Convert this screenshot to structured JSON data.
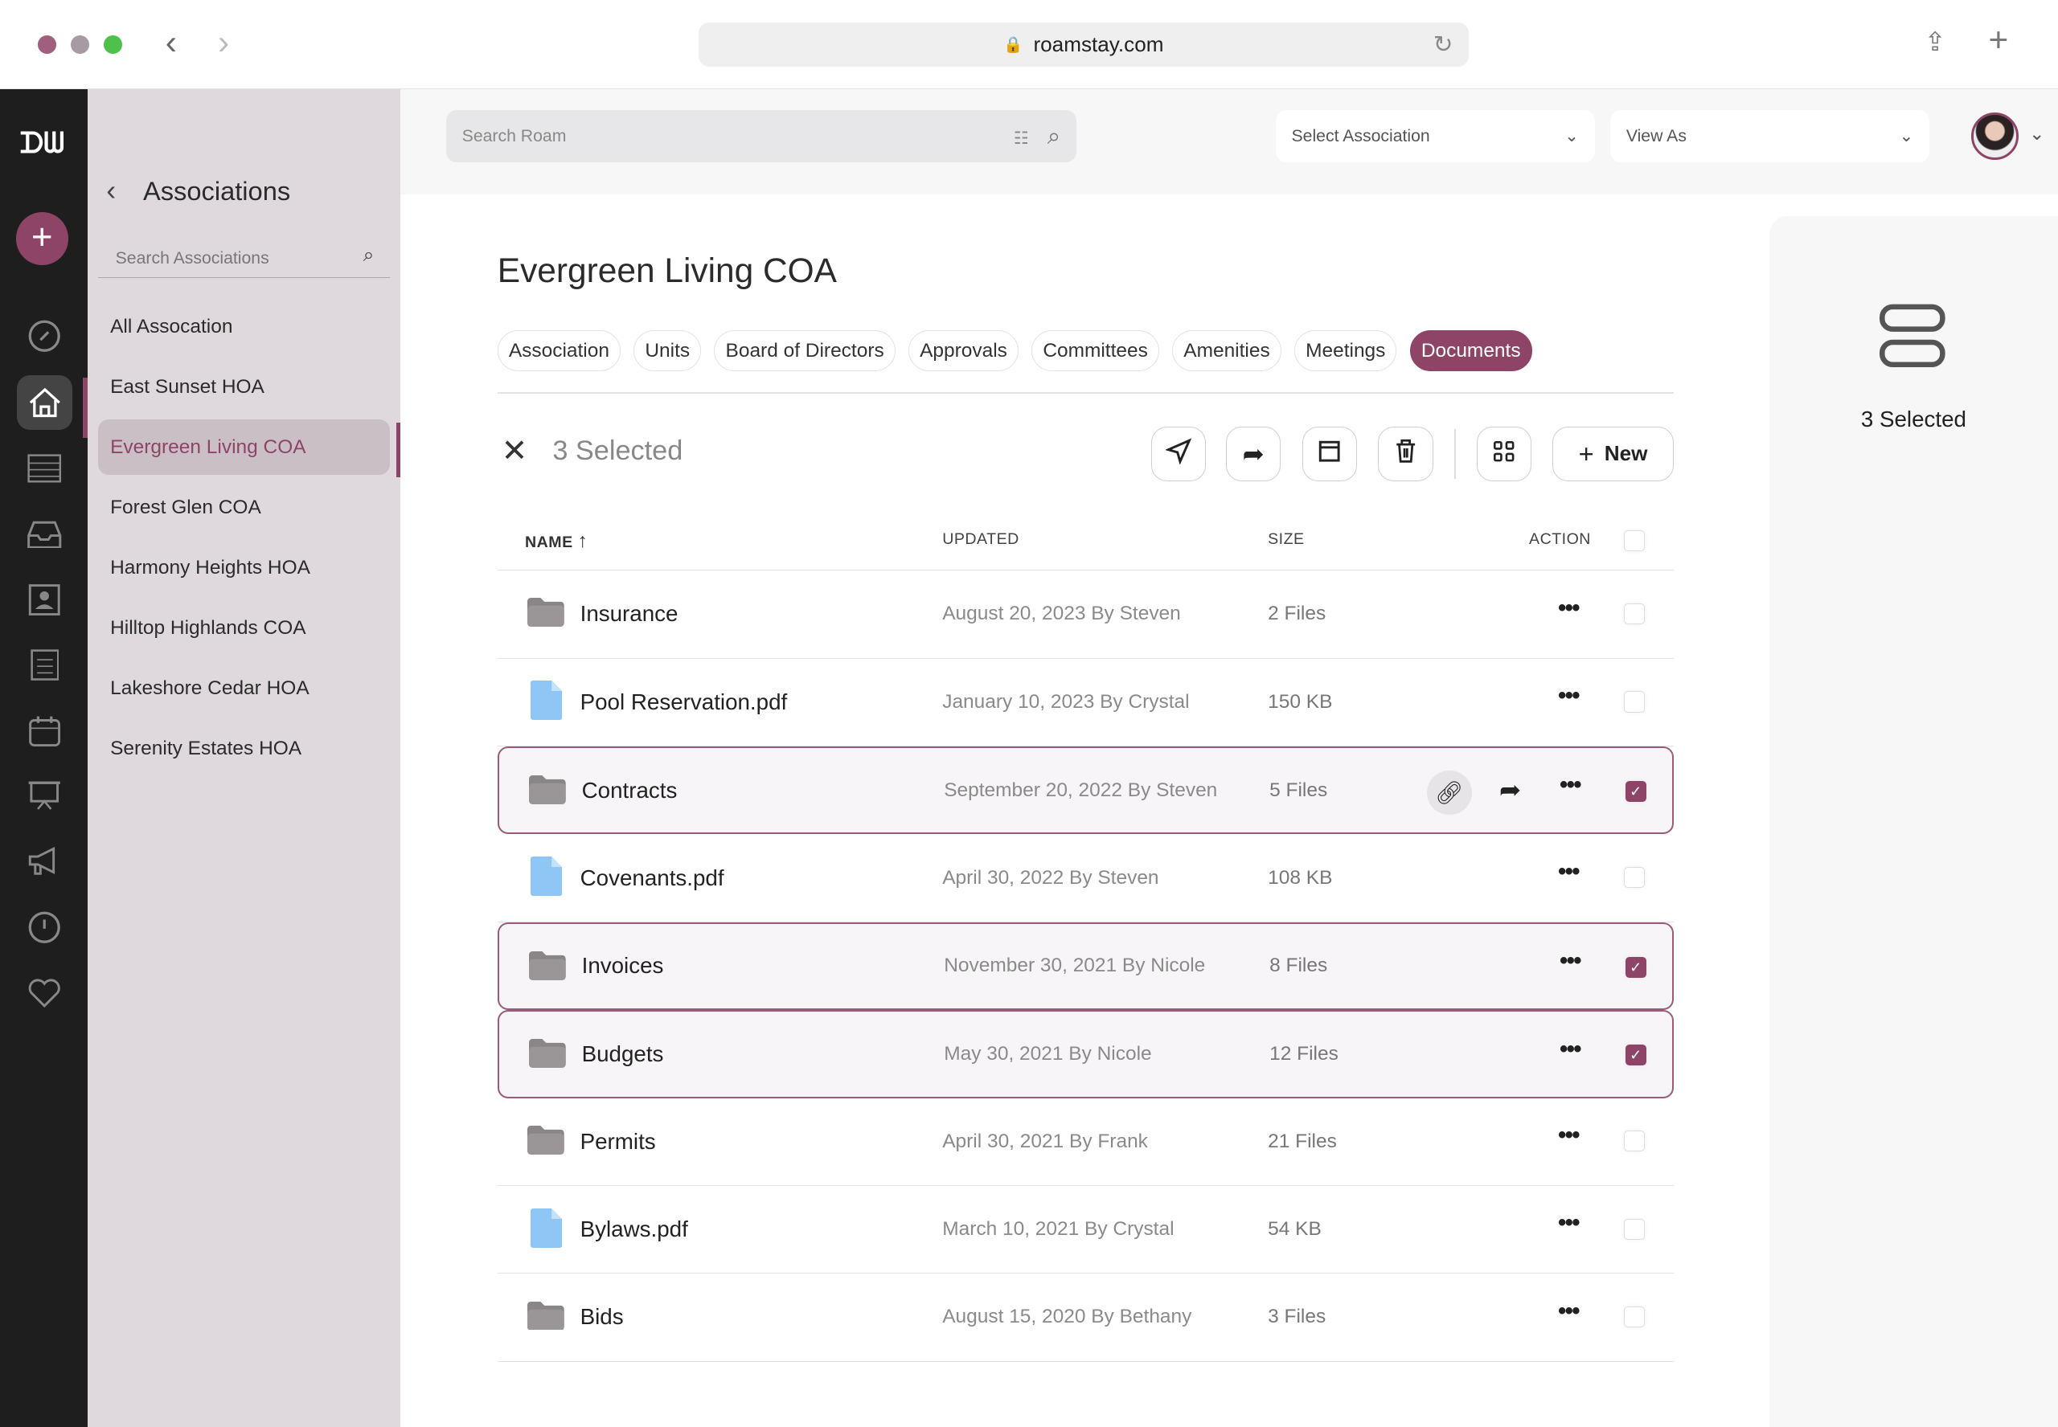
{
  "browser": {
    "url": "roamstay.com"
  },
  "colors": {
    "accent": "#8e4466",
    "rail": "#1e1e1e",
    "panel": "#dfd9dd"
  },
  "header": {
    "search_placeholder": "Search Roam",
    "select_association": "Select Association",
    "view_as": "View As"
  },
  "panel": {
    "title": "Associations",
    "search_placeholder": "Search Associations",
    "items": [
      "All Assocation",
      "East Sunset HOA",
      "Evergreen Living COA",
      "Forest Glen COA",
      "Harmony Heights HOA",
      "Hilltop Highlands COA",
      "Lakeshore Cedar HOA",
      "Serenity Estates HOA"
    ],
    "active": 2
  },
  "main": {
    "title": "Evergreen Living COA",
    "tabs": [
      "Association",
      "Units",
      "Board of Directors",
      "Approvals",
      "Committees",
      "Amenities",
      "Meetings",
      "Documents"
    ],
    "active_tab": 7,
    "selected_label": "3 Selected",
    "new_label": "New",
    "columns": {
      "name": "NAME",
      "updated": "UPDATED",
      "size": "SIZE",
      "action": "ACTION"
    },
    "rows": [
      {
        "name": "Insurance",
        "type": "folder",
        "updated": "August 20, 2023 By Steven",
        "size": "2 Files",
        "checked": false
      },
      {
        "name": "Pool Reservation.pdf",
        "type": "file",
        "updated": "January 10, 2023 By Crystal",
        "size": "150 KB",
        "checked": false
      },
      {
        "name": "Contracts",
        "type": "folder",
        "updated": "September 20, 2022 By Steven",
        "size": "5 Files",
        "checked": true,
        "hover": true
      },
      {
        "name": "Covenants.pdf",
        "type": "file",
        "updated": "April 30, 2022 By Steven",
        "size": "108 KB",
        "checked": false
      },
      {
        "name": "Invoices",
        "type": "folder",
        "updated": "November 30, 2021 By Nicole",
        "size": "8 Files",
        "checked": true
      },
      {
        "name": "Budgets",
        "type": "folder",
        "updated": "May 30, 2021 By Nicole",
        "size": "12 Files",
        "checked": true
      },
      {
        "name": "Permits",
        "type": "folder",
        "updated": "April 30, 2021 By Frank",
        "size": "21 Files",
        "checked": false
      },
      {
        "name": "Bylaws.pdf",
        "type": "file",
        "updated": "March 10, 2021 By Crystal",
        "size": "54 KB",
        "checked": false
      },
      {
        "name": "Bids",
        "type": "folder",
        "updated": "August 15, 2020 By Bethany",
        "size": "3 Files",
        "checked": false
      }
    ]
  },
  "right_panel": {
    "selected_label": "3 Selected"
  }
}
